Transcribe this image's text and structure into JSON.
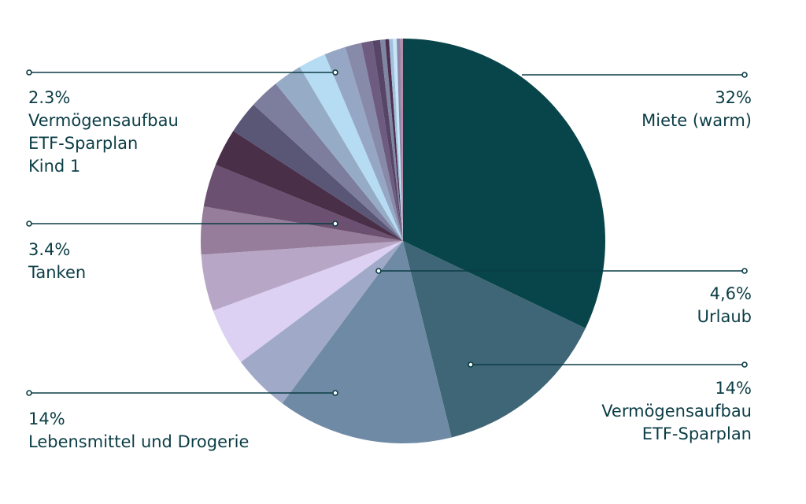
{
  "chart_data": {
    "type": "pie",
    "title": "",
    "slices": [
      {
        "value": 32.0,
        "color": "#08454a"
      },
      {
        "value": 14.0,
        "color": "#3e6676"
      },
      {
        "value": 14.0,
        "color": "#6f8aa4"
      },
      {
        "value": 4.6,
        "color": "#a0a9c8"
      },
      {
        "value": 4.6,
        "color": "#dcd1f3"
      },
      {
        "value": 4.5,
        "color": "#b8a6c6"
      },
      {
        "value": 3.8,
        "color": "#957d9b"
      },
      {
        "value": 3.4,
        "color": "#6c5071"
      },
      {
        "value": 3.0,
        "color": "#4a2f49"
      },
      {
        "value": 2.6,
        "color": "#5a5676"
      },
      {
        "value": 2.4,
        "color": "#7d7d9e"
      },
      {
        "value": 2.3,
        "color": "#96acc6"
      },
      {
        "value": 2.2,
        "color": "#b6dcf3"
      },
      {
        "value": 1.7,
        "color": "#96a7c6"
      },
      {
        "value": 1.3,
        "color": "#888aa9"
      },
      {
        "value": 0.9,
        "color": "#6e5b80"
      },
      {
        "value": 0.6,
        "color": "#564567"
      },
      {
        "value": 0.4,
        "color": "#7f86a2"
      },
      {
        "value": 0.3,
        "color": "#4d3050"
      },
      {
        "value": 0.3,
        "color": "#a2bfdc"
      },
      {
        "value": 0.3,
        "color": "#c6e6f7"
      },
      {
        "value": 0.3,
        "color": "#8e87ab"
      },
      {
        "value": 0.2,
        "color": "#bb8ba6"
      }
    ],
    "callouts": [
      {
        "pct": "32%",
        "lines": [
          "Miete (warm)"
        ],
        "side": "right",
        "slice": 0
      },
      {
        "pct": "4,6%",
        "lines": [
          "Urlaub"
        ],
        "side": "right",
        "slice": 3
      },
      {
        "pct": "14%",
        "lines": [
          "Vermögensaufbau",
          "ETF-Sparplan"
        ],
        "side": "right",
        "slice": 1
      },
      {
        "pct": "2.3%",
        "lines": [
          "Vermögensaufbau",
          "ETF-Sparplan",
          "Kind 1"
        ],
        "side": "left",
        "slice": 11
      },
      {
        "pct": "3.4%",
        "lines": [
          "Tanken"
        ],
        "side": "left",
        "slice": 7
      },
      {
        "pct": "14%",
        "lines": [
          "Lebensmittel und Drogerie"
        ],
        "side": "left",
        "slice": 2
      }
    ]
  }
}
